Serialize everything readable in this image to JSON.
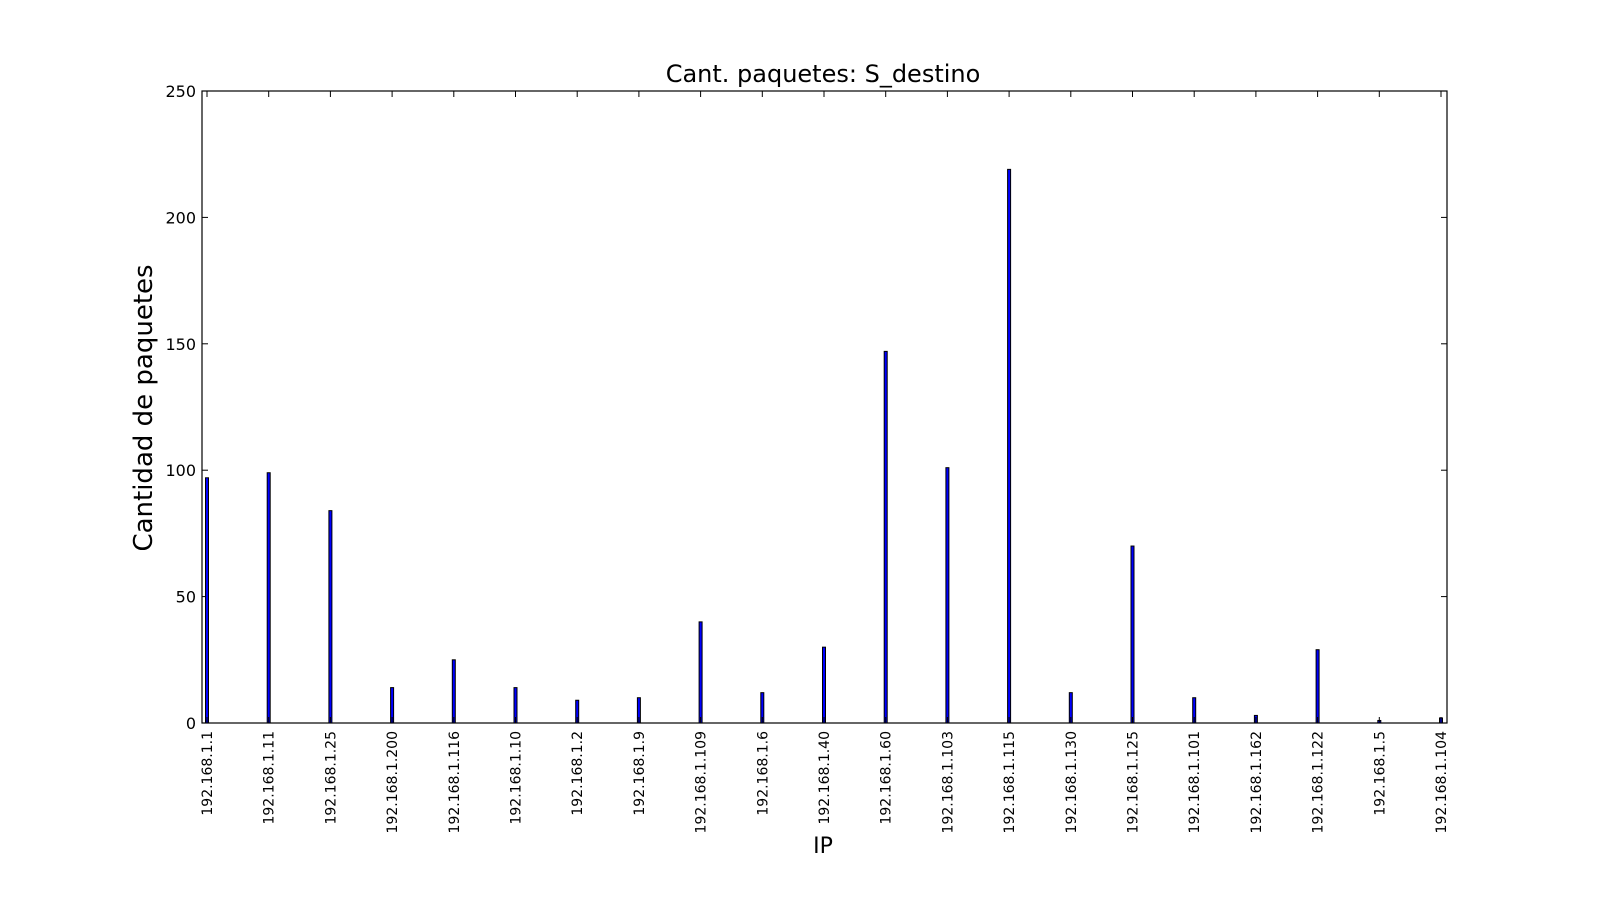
{
  "chart_data": {
    "type": "bar",
    "title": "Cant. paquetes: S_destino",
    "xlabel": "IP",
    "ylabel": "Cantidad de paquetes",
    "ylim": [
      0,
      250
    ],
    "yticks": [
      0,
      50,
      100,
      150,
      200,
      250
    ],
    "grid": false,
    "bar_color": "#0000ff",
    "categories": [
      "192.168.1.1",
      "192.168.1.11",
      "192.168.1.25",
      "192.168.1.200",
      "192.168.1.116",
      "192.168.1.10",
      "192.168.1.2",
      "192.168.1.9",
      "192.168.1.109",
      "192.168.1.6",
      "192.168.1.40",
      "192.168.1.60",
      "192.168.1.103",
      "192.168.1.115",
      "192.168.1.130",
      "192.168.1.125",
      "192.168.1.101",
      "192.168.1.162",
      "192.168.1.122",
      "192.168.1.5",
      "192.168.1.104"
    ],
    "values": [
      97,
      99,
      84,
      14,
      25,
      14,
      9,
      10,
      40,
      12,
      30,
      147,
      101,
      219,
      12,
      70,
      10,
      3,
      29,
      1,
      2
    ]
  }
}
